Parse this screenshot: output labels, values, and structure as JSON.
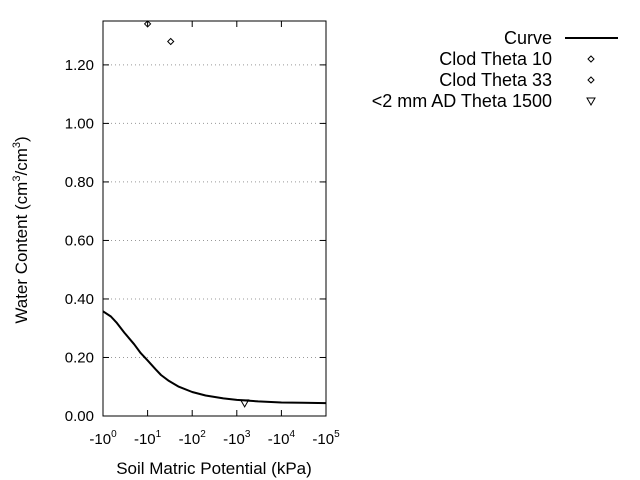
{
  "chart_data": {
    "type": "line",
    "title": "",
    "xlabel": "Soil Matric Potential (kPa)",
    "ylabel": {
      "text": "Water Content (cm",
      "sup1": "3",
      "mid": "/cm",
      "sup2": "3",
      "end": ")"
    },
    "x_scale": "log",
    "x_ticks": [
      {
        "value": 1,
        "base": "-10",
        "exp": "0"
      },
      {
        "value": 10,
        "base": "-10",
        "exp": "1"
      },
      {
        "value": 100,
        "base": "-10",
        "exp": "2"
      },
      {
        "value": 1000,
        "base": "-10",
        "exp": "3"
      },
      {
        "value": 10000,
        "base": "-10",
        "exp": "4"
      },
      {
        "value": 100000,
        "base": "-10",
        "exp": "5"
      }
    ],
    "xlim": [
      1,
      100000
    ],
    "ylim": [
      0,
      1.35
    ],
    "y_ticks": [
      {
        "value": 0.0,
        "label": "0.00"
      },
      {
        "value": 0.2,
        "label": "0.20"
      },
      {
        "value": 0.4,
        "label": "0.40"
      },
      {
        "value": 0.6,
        "label": "0.60"
      },
      {
        "value": 0.8,
        "label": "0.80"
      },
      {
        "value": 1.0,
        "label": "1.00"
      },
      {
        "value": 1.2,
        "label": "1.20"
      }
    ],
    "grid": "horizontal dotted",
    "legend_position": "right",
    "series": [
      {
        "name": "Curve",
        "kind": "line",
        "color": "#000000",
        "points": [
          {
            "x": 1,
            "y": 0.358
          },
          {
            "x": 1.5,
            "y": 0.34
          },
          {
            "x": 2,
            "y": 0.32
          },
          {
            "x": 3,
            "y": 0.285
          },
          {
            "x": 5,
            "y": 0.245
          },
          {
            "x": 7,
            "y": 0.215
          },
          {
            "x": 10,
            "y": 0.19
          },
          {
            "x": 15,
            "y": 0.16
          },
          {
            "x": 20,
            "y": 0.14
          },
          {
            "x": 30,
            "y": 0.12
          },
          {
            "x": 50,
            "y": 0.1
          },
          {
            "x": 100,
            "y": 0.082
          },
          {
            "x": 200,
            "y": 0.07
          },
          {
            "x": 500,
            "y": 0.06
          },
          {
            "x": 1000,
            "y": 0.055
          },
          {
            "x": 3000,
            "y": 0.05
          },
          {
            "x": 10000,
            "y": 0.046
          },
          {
            "x": 30000,
            "y": 0.045
          },
          {
            "x": 100000,
            "y": 0.044
          }
        ]
      },
      {
        "name": "Clod Theta 10",
        "kind": "marker",
        "marker": "diamond",
        "points": [
          {
            "x": 10,
            "y": 1.34
          }
        ]
      },
      {
        "name": "Clod Theta 33",
        "kind": "marker",
        "marker": "diamond",
        "points": [
          {
            "x": 33,
            "y": 1.28
          }
        ]
      },
      {
        "name": "<2 mm AD Theta 1500",
        "kind": "marker",
        "marker": "triangle-down",
        "points": [
          {
            "x": 1500,
            "y": 0.045
          }
        ]
      }
    ]
  }
}
